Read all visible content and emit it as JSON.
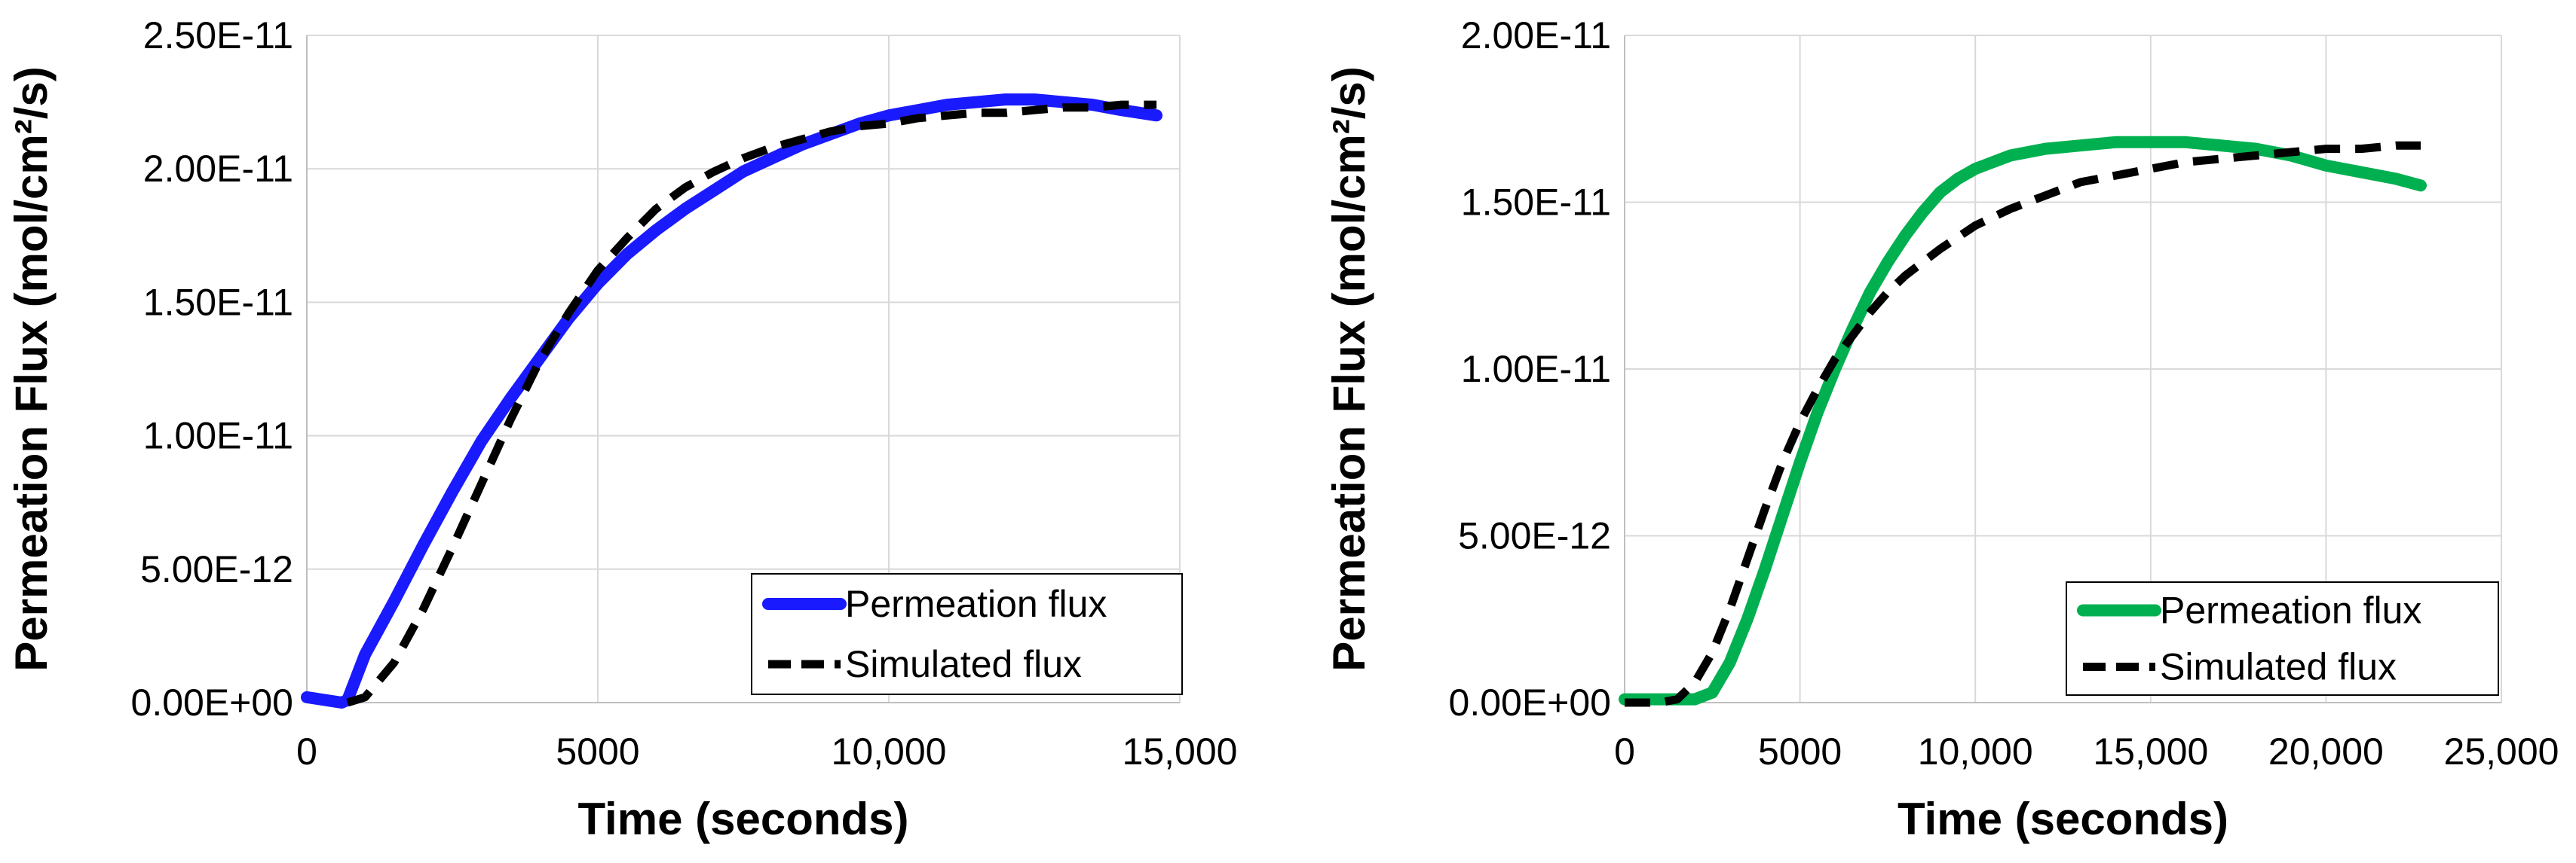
{
  "chart_data": [
    {
      "type": "line",
      "title": "",
      "xlabel": "Time (seconds)",
      "ylabel": "Permeation Flux (mol/cm²/s)",
      "xlim": [
        0,
        15000
      ],
      "ylim": [
        0,
        2.5e-11
      ],
      "xticks": [
        0,
        5000,
        10000,
        15000
      ],
      "xtick_labels": [
        "0",
        "5000",
        "10,000",
        "15,000"
      ],
      "yticks": [
        0,
        5e-12,
        1e-11,
        1.5e-11,
        2e-11,
        2.5e-11
      ],
      "ytick_labels": [
        "0.00E+00",
        "5.00E-12",
        "1.00E-11",
        "1.50E-11",
        "2.00E-11",
        "2.50E-11"
      ],
      "grid": true,
      "legend_position": "bottom-right",
      "series": [
        {
          "name": "Permeation flux",
          "color": "#1a1aff",
          "style": "solid",
          "x": [
            0,
            600,
            700,
            1000,
            1500,
            2000,
            2500,
            3000,
            3500,
            4000,
            4500,
            5000,
            5500,
            6000,
            6500,
            7000,
            7500,
            8000,
            8500,
            9000,
            9500,
            10000,
            10500,
            11000,
            11500,
            12000,
            12500,
            13000,
            13500,
            14000,
            14600
          ],
          "y": [
            2e-13,
            0,
            1e-13,
            1.8e-12,
            3.8e-12,
            5.9e-12,
            7.9e-12,
            9.8e-12,
            1.14e-11,
            1.29e-11,
            1.44e-11,
            1.57e-11,
            1.68e-11,
            1.77e-11,
            1.85e-11,
            1.92e-11,
            1.99e-11,
            2.04e-11,
            2.09e-11,
            2.13e-11,
            2.17e-11,
            2.2e-11,
            2.22e-11,
            2.24e-11,
            2.25e-11,
            2.26e-11,
            2.26e-11,
            2.25e-11,
            2.24e-11,
            2.22e-11,
            2.2e-11
          ]
        },
        {
          "name": "Simulated flux",
          "color": "#000000",
          "style": "dashed",
          "x": [
            700,
            1000,
            1500,
            2000,
            2500,
            3000,
            3500,
            4000,
            4500,
            5000,
            5500,
            6000,
            6500,
            7000,
            7500,
            8000,
            8500,
            9000,
            9500,
            10000,
            10500,
            11000,
            11500,
            12000,
            12500,
            13000,
            13500,
            14000,
            14600
          ],
          "y": [
            0,
            2e-13,
            1.5e-12,
            3.5e-12,
            5.8e-12,
            8.2e-12,
            1.06e-11,
            1.28e-11,
            1.46e-11,
            1.62e-11,
            1.74e-11,
            1.85e-11,
            1.93e-11,
            1.99e-11,
            2.04e-11,
            2.08e-11,
            2.11e-11,
            2.14e-11,
            2.16e-11,
            2.17e-11,
            2.19e-11,
            2.2e-11,
            2.21e-11,
            2.21e-11,
            2.22e-11,
            2.23e-11,
            2.23e-11,
            2.24e-11,
            2.24e-11
          ]
        }
      ]
    },
    {
      "type": "line",
      "title": "",
      "xlabel": "Time (seconds)",
      "ylabel": "Permeation Flux (mol/cm²/s)",
      "xlim": [
        0,
        25000
      ],
      "ylim": [
        0,
        2e-11
      ],
      "xticks": [
        0,
        5000,
        10000,
        15000,
        20000,
        25000
      ],
      "xtick_labels": [
        "0",
        "5000",
        "10,000",
        "15,000",
        "20,000",
        "25,000"
      ],
      "yticks": [
        0,
        5e-12,
        1e-11,
        1.5e-11,
        2e-11
      ],
      "ytick_labels": [
        "0.00E+00",
        "5.00E-12",
        "1.00E-11",
        "1.50E-11",
        "2.00E-11"
      ],
      "grid": true,
      "legend_position": "bottom-right",
      "series": [
        {
          "name": "Permeation flux",
          "color": "#00b050",
          "style": "solid",
          "x": [
            0,
            2000,
            2500,
            3000,
            3500,
            4000,
            4500,
            5000,
            5500,
            6000,
            6500,
            7000,
            7500,
            8000,
            8500,
            9000,
            9500,
            10000,
            10500,
            11000,
            12000,
            13000,
            14000,
            15000,
            16000,
            17000,
            18000,
            19000,
            20000,
            21000,
            22000,
            22700
          ],
          "y": [
            1e-13,
            1e-13,
            3e-13,
            1.2e-12,
            2.5e-12,
            4e-12,
            5.6e-12,
            7.2e-12,
            8.7e-12,
            1e-11,
            1.12e-11,
            1.23e-11,
            1.32e-11,
            1.4e-11,
            1.47e-11,
            1.53e-11,
            1.57e-11,
            1.6e-11,
            1.62e-11,
            1.64e-11,
            1.66e-11,
            1.67e-11,
            1.68e-11,
            1.68e-11,
            1.68e-11,
            1.67e-11,
            1.66e-11,
            1.64e-11,
            1.61e-11,
            1.59e-11,
            1.57e-11,
            1.55e-11
          ]
        },
        {
          "name": "Simulated flux",
          "color": "#000000",
          "style": "dashed",
          "x": [
            0,
            1000,
            1500,
            2000,
            2500,
            3000,
            3500,
            4000,
            4500,
            5000,
            5500,
            6000,
            6500,
            7000,
            7500,
            8000,
            9000,
            10000,
            11000,
            12000,
            13000,
            14000,
            15000,
            16000,
            17000,
            18000,
            19000,
            20000,
            21000,
            22000,
            22700
          ],
          "y": [
            0,
            0,
            1e-13,
            6e-13,
            1.5e-12,
            2.8e-12,
            4.3e-12,
            5.8e-12,
            7.2e-12,
            8.4e-12,
            9.4e-12,
            1.03e-11,
            1.1e-11,
            1.17e-11,
            1.23e-11,
            1.28e-11,
            1.36e-11,
            1.43e-11,
            1.48e-11,
            1.52e-11,
            1.56e-11,
            1.58e-11,
            1.6e-11,
            1.62e-11,
            1.63e-11,
            1.64e-11,
            1.65e-11,
            1.66e-11,
            1.66e-11,
            1.67e-11,
            1.67e-11
          ]
        }
      ]
    }
  ]
}
